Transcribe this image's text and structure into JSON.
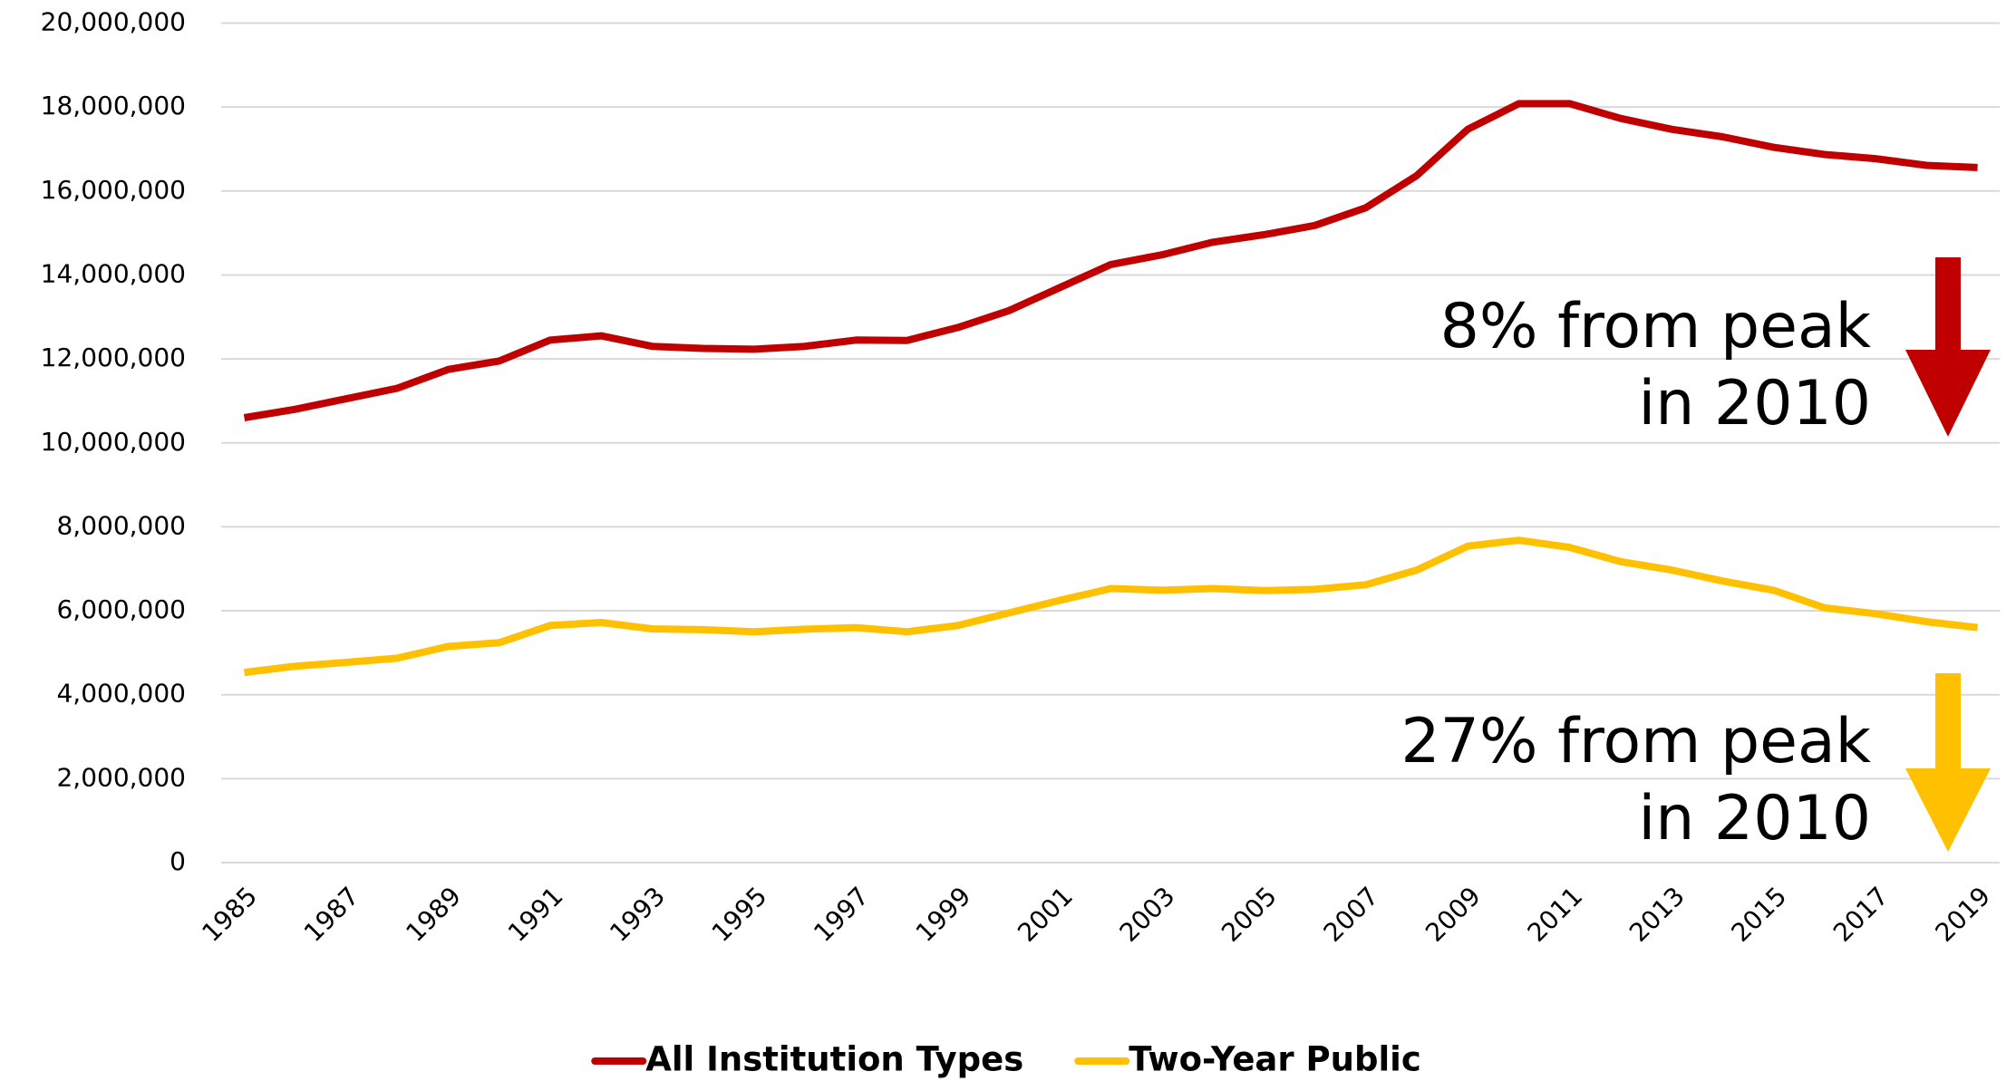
{
  "chart_data": {
    "type": "line",
    "x": [
      1985,
      1986,
      1987,
      1988,
      1989,
      1990,
      1991,
      1992,
      1993,
      1994,
      1995,
      1996,
      1997,
      1998,
      1999,
      2000,
      2001,
      2002,
      2003,
      2004,
      2005,
      2006,
      2007,
      2008,
      2009,
      2010,
      2011,
      2012,
      2013,
      2014,
      2015,
      2016,
      2017,
      2018,
      2019
    ],
    "xlim": [
      1985,
      2019
    ],
    "xticks": [
      1985,
      1987,
      1989,
      1991,
      1993,
      1995,
      1997,
      1999,
      2001,
      2003,
      2005,
      2007,
      2009,
      2011,
      2013,
      2015,
      2017,
      2019
    ],
    "ylim": [
      0,
      20000000
    ],
    "yticks": [
      0,
      {
        "value": 2000000,
        "label": "2,000,000"
      },
      {
        "value": 4000000,
        "label": "4,000,000"
      },
      {
        "value": 6000000,
        "label": "6,000,000"
      },
      {
        "value": 8000000,
        "label": "8,000,000"
      },
      {
        "value": 10000000,
        "label": "10,000,000"
      },
      {
        "value": 12000000,
        "label": "12,000,000"
      },
      {
        "value": 14000000,
        "label": "14,000,000"
      },
      {
        "value": 16000000,
        "label": "16,000,000"
      },
      {
        "value": 18000000,
        "label": "18,000,000"
      },
      {
        "value": 20000000,
        "label": "20,000,000"
      }
    ],
    "grid": true,
    "legend": "bottom",
    "series": [
      {
        "name": "All Institution Types",
        "color": "#c00000",
        "values": [
          10600000,
          10800000,
          11050000,
          11300000,
          11750000,
          11950000,
          12450000,
          12550000,
          12300000,
          12250000,
          12230000,
          12300000,
          12450000,
          12440000,
          12750000,
          13150000,
          13700000,
          14250000,
          14480000,
          14780000,
          14960000,
          15180000,
          15600000,
          16370000,
          17470000,
          18080000,
          18080000,
          17730000,
          17470000,
          17290000,
          17040000,
          16870000,
          16770000,
          16610000,
          16560000
        ]
      },
      {
        "name": "Two-Year Public",
        "color": "#ffc000",
        "values": [
          4530000,
          4680000,
          4770000,
          4870000,
          5150000,
          5240000,
          5650000,
          5720000,
          5570000,
          5550000,
          5500000,
          5560000,
          5600000,
          5500000,
          5650000,
          5950000,
          6250000,
          6530000,
          6490000,
          6530000,
          6480000,
          6510000,
          6620000,
          6970000,
          7540000,
          7680000,
          7510000,
          7170000,
          6970000,
          6710000,
          6490000,
          6070000,
          5930000,
          5740000,
          5600000
        ]
      }
    ],
    "annotations": [
      {
        "text": [
          "8% from peak",
          "in 2010"
        ],
        "color": "#c00000"
      },
      {
        "text": [
          "27% from peak",
          "in 2010"
        ],
        "color": "#ffc000"
      }
    ]
  }
}
